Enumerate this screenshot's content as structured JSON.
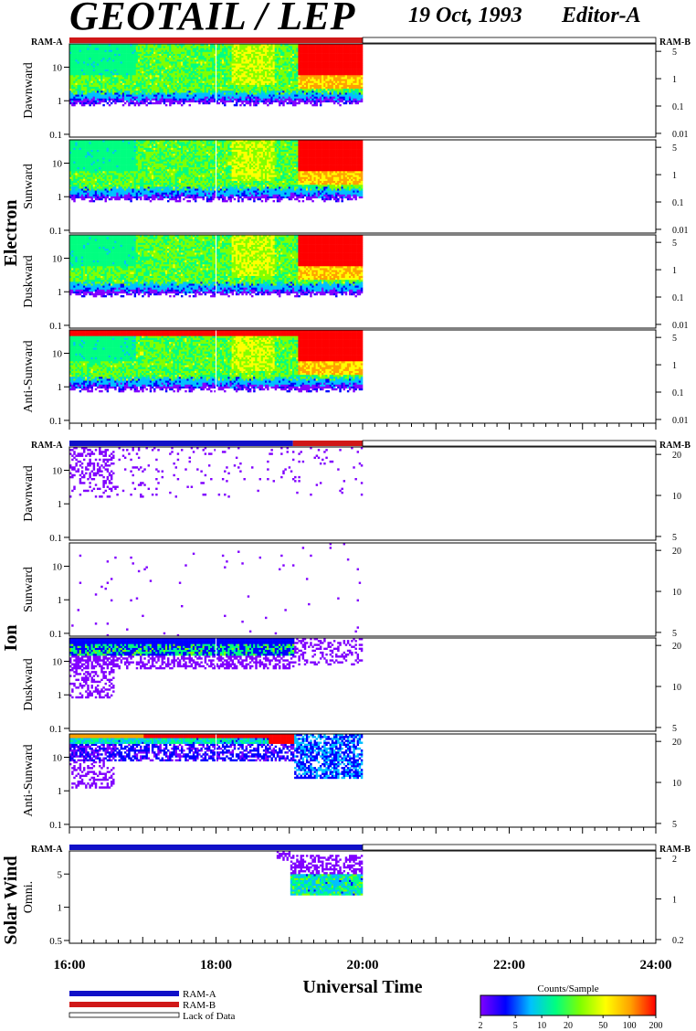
{
  "header": {
    "title": "GEOTAIL / LEP",
    "date": "19 Oct, 1993",
    "editor": "Editor-A"
  },
  "colors": {
    "ram_a": "#1010c8",
    "ram_b": "#d01818",
    "lack_of_data": "#ffffff",
    "colorbar_stops": [
      "#8000ff",
      "#0000ff",
      "#00c0ff",
      "#00ff80",
      "#80ff00",
      "#ffff00",
      "#ffa000",
      "#ff0000"
    ]
  },
  "chart_data": {
    "type": "heatmap",
    "xlabel": "Universal Time",
    "x_ticks": [
      "16:00",
      "18:00",
      "20:00",
      "22:00",
      "24:00"
    ],
    "x_range_hours": [
      16,
      24
    ],
    "data_end_hours": 20.0,
    "groups": [
      {
        "name": "Electron",
        "mode_bar": {
          "left_label": "RAM-A",
          "right_label": "RAM-B",
          "segments": [
            {
              "mode": "RAM-B",
              "start": 16.0,
              "end": 20.0
            },
            {
              "mode": "none",
              "start": 20.0,
              "end": 24.0
            }
          ]
        },
        "panels": [
          {
            "label": "Dawnward",
            "left_ticks": [
              "10",
              "1",
              "0.1"
            ],
            "right_ticks": [
              "5",
              "1",
              "0.1",
              "0.01"
            ],
            "profile": "electron"
          },
          {
            "label": "Sunward",
            "left_ticks": [
              "10",
              "1",
              "0.1"
            ],
            "right_ticks": [
              "5",
              "1",
              "0.1",
              "0.01"
            ],
            "profile": "electron"
          },
          {
            "label": "Duskward",
            "left_ticks": [
              "10",
              "1",
              "0.1"
            ],
            "right_ticks": [
              "5",
              "1",
              "0.1",
              "0.01"
            ],
            "profile": "electron"
          },
          {
            "label": "Anti-Sunward",
            "left_ticks": [
              "10",
              "1",
              "0.1"
            ],
            "right_ticks": [
              "5",
              "1",
              "0.1",
              "0.01"
            ],
            "profile": "electron"
          }
        ]
      },
      {
        "name": "Ion",
        "mode_bar": {
          "left_label": "RAM-A",
          "right_label": "RAM-B",
          "segments": [
            {
              "mode": "RAM-A",
              "start": 16.0,
              "end": 19.05
            },
            {
              "mode": "RAM-B",
              "start": 19.05,
              "end": 20.0
            },
            {
              "mode": "none",
              "start": 20.0,
              "end": 24.0
            }
          ]
        },
        "panels": [
          {
            "label": "Dawnward",
            "left_ticks": [
              "10",
              "1",
              "0.1"
            ],
            "right_ticks": [
              "20",
              "10",
              "5"
            ],
            "profile": "ion-sparse"
          },
          {
            "label": "Sunward",
            "left_ticks": [
              "10",
              "1",
              "0.1"
            ],
            "right_ticks": [
              "20",
              "10",
              "5"
            ],
            "profile": "ion-very-sparse"
          },
          {
            "label": "Duskward",
            "left_ticks": [
              "10",
              "1",
              "0.1"
            ],
            "right_ticks": [
              "20",
              "10",
              "5"
            ],
            "profile": "ion-dusk"
          },
          {
            "label": "Anti-Sunward",
            "left_ticks": [
              "10",
              "1",
              "0.1"
            ],
            "right_ticks": [
              "20",
              "10",
              "5"
            ],
            "profile": "ion-antisun"
          }
        ]
      },
      {
        "name": "Solar Wind",
        "mode_bar": {
          "left_label": "RAM-A",
          "right_label": "RAM-B",
          "segments": [
            {
              "mode": "RAM-A",
              "start": 16.0,
              "end": 20.0
            },
            {
              "mode": "none",
              "start": 20.0,
              "end": 24.0
            }
          ]
        },
        "panels": [
          {
            "label": "Omni.",
            "left_ticks": [
              "5",
              "1",
              "0.5"
            ],
            "right_ticks": [
              "2",
              "1",
              "0.2"
            ],
            "profile": "solarwind"
          }
        ]
      }
    ],
    "legend": {
      "items": [
        {
          "label": "RAM-A",
          "color": "#1010c8"
        },
        {
          "label": "RAM-B",
          "color": "#d01818"
        },
        {
          "label": "Lack of Data",
          "color": "#ffffff"
        }
      ]
    },
    "colorbar": {
      "title": "Counts/Sample",
      "ticks": [
        "2",
        "5",
        "10",
        "20",
        "50",
        "100",
        "200"
      ],
      "scale": "log",
      "range": [
        2,
        200
      ]
    }
  }
}
